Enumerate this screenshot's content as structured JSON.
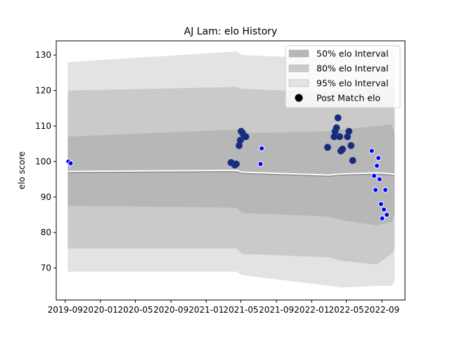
{
  "chart_data": {
    "type": "scatter",
    "title": "AJ Lam: elo History",
    "xlabel": "",
    "ylabel": "elo score",
    "xlim": [
      "2019-08-01",
      "2022-11-20"
    ],
    "ylim": [
      61,
      134
    ],
    "x_ticks": [
      "2019-09",
      "2020-01",
      "2020-05",
      "2020-09",
      "2021-01",
      "2021-05",
      "2021-09",
      "2022-01",
      "2022-05",
      "2022-09"
    ],
    "y_ticks": [
      70,
      80,
      90,
      100,
      110,
      120,
      130
    ],
    "legend": {
      "placement": "top-right",
      "entries": [
        "50% elo Interval",
        "80% elo Interval",
        "95% elo Interval",
        "Post Match elo"
      ]
    },
    "colors": {
      "band95": "#e3e3e3",
      "band80": "#cacaca",
      "band50": "#b7b7b7",
      "median_line": "#ffffff",
      "mean_line": "#808080",
      "point_fill_early": "#1a2a7a",
      "point_fill_late": "#0000ff",
      "point_edge": "#1a3a8a"
    },
    "bands": [
      {
        "date": "2019-09-10",
        "p025": 69,
        "p10": 75.5,
        "p25": 87.5,
        "median": 97.2,
        "p75": 107,
        "p90": 120,
        "p975": 128
      },
      {
        "date": "2021-04-15",
        "p025": 69,
        "p10": 75.5,
        "p25": 87,
        "median": 97.5,
        "p75": 109,
        "p90": 121,
        "p975": 131
      },
      {
        "date": "2021-05-05",
        "p025": 68,
        "p10": 74,
        "p25": 85.5,
        "median": 97,
        "p75": 108,
        "p90": 120.5,
        "p975": 130
      },
      {
        "date": "2022-03-01",
        "p025": 65,
        "p10": 73,
        "p25": 84.5,
        "median": 96.2,
        "p75": 108.5,
        "p90": 119.5,
        "p975": 129
      },
      {
        "date": "2022-04-15",
        "p025": 64.5,
        "p10": 72,
        "p25": 83.5,
        "median": 96.5,
        "p75": 109,
        "p90": 120,
        "p975": 130
      },
      {
        "date": "2022-08-15",
        "p025": 65,
        "p10": 71,
        "p25": 82,
        "median": 96.8,
        "p75": 110,
        "p90": 121,
        "p975": 131.5
      },
      {
        "date": "2022-10-05",
        "p025": 65,
        "p10": 74,
        "p25": 83,
        "median": 96.5,
        "p75": 110.5,
        "p90": 121.5,
        "p975": 132
      },
      {
        "date": "2022-10-15",
        "p025": 66,
        "p10": 75.5,
        "p25": 85,
        "median": 96.3,
        "p75": 108,
        "p90": 121,
        "p975": 131
      }
    ],
    "points": [
      {
        "date": "2019-09-12",
        "elo": 100.0,
        "group": "late"
      },
      {
        "date": "2019-09-20",
        "elo": 99.5,
        "group": "late"
      },
      {
        "date": "2021-03-28",
        "elo": 99.7,
        "group": "early"
      },
      {
        "date": "2021-04-10",
        "elo": 99.0,
        "group": "early"
      },
      {
        "date": "2021-04-15",
        "elo": 99.3,
        "group": "early"
      },
      {
        "date": "2021-04-25",
        "elo": 104.5,
        "group": "early"
      },
      {
        "date": "2021-04-29",
        "elo": 106.0,
        "group": "early"
      },
      {
        "date": "2021-05-02",
        "elo": 108.5,
        "group": "early"
      },
      {
        "date": "2021-05-07",
        "elo": 108.0,
        "group": "early"
      },
      {
        "date": "2021-05-12",
        "elo": 107.0,
        "group": "early"
      },
      {
        "date": "2021-05-18",
        "elo": 107.0,
        "group": "early"
      },
      {
        "date": "2021-07-08",
        "elo": 99.3,
        "group": "late"
      },
      {
        "date": "2021-07-12",
        "elo": 103.7,
        "group": "late"
      },
      {
        "date": "2022-02-25",
        "elo": 104.0,
        "group": "early"
      },
      {
        "date": "2022-03-20",
        "elo": 107.0,
        "group": "early"
      },
      {
        "date": "2022-03-23",
        "elo": 108.5,
        "group": "early"
      },
      {
        "date": "2022-03-28",
        "elo": 109.5,
        "group": "early"
      },
      {
        "date": "2022-04-02",
        "elo": 112.3,
        "group": "early"
      },
      {
        "date": "2022-04-08",
        "elo": 107.0,
        "group": "early"
      },
      {
        "date": "2022-04-12",
        "elo": 103.0,
        "group": "early"
      },
      {
        "date": "2022-04-18",
        "elo": 103.5,
        "group": "early"
      },
      {
        "date": "2022-05-05",
        "elo": 107.0,
        "group": "early"
      },
      {
        "date": "2022-05-10",
        "elo": 108.5,
        "group": "early"
      },
      {
        "date": "2022-05-17",
        "elo": 104.5,
        "group": "early"
      },
      {
        "date": "2022-05-23",
        "elo": 100.3,
        "group": "early"
      },
      {
        "date": "2022-07-28",
        "elo": 103.0,
        "group": "late"
      },
      {
        "date": "2022-08-05",
        "elo": 96.0,
        "group": "late"
      },
      {
        "date": "2022-08-10",
        "elo": 92.0,
        "group": "late"
      },
      {
        "date": "2022-08-15",
        "elo": 98.8,
        "group": "late"
      },
      {
        "date": "2022-08-20",
        "elo": 101.0,
        "group": "late"
      },
      {
        "date": "2022-08-24",
        "elo": 95.0,
        "group": "late"
      },
      {
        "date": "2022-08-29",
        "elo": 88.0,
        "group": "late"
      },
      {
        "date": "2022-09-02",
        "elo": 84.0,
        "group": "late"
      },
      {
        "date": "2022-09-08",
        "elo": 86.5,
        "group": "late"
      },
      {
        "date": "2022-09-13",
        "elo": 92.0,
        "group": "late"
      },
      {
        "date": "2022-09-18",
        "elo": 85.0,
        "group": "late"
      }
    ]
  }
}
